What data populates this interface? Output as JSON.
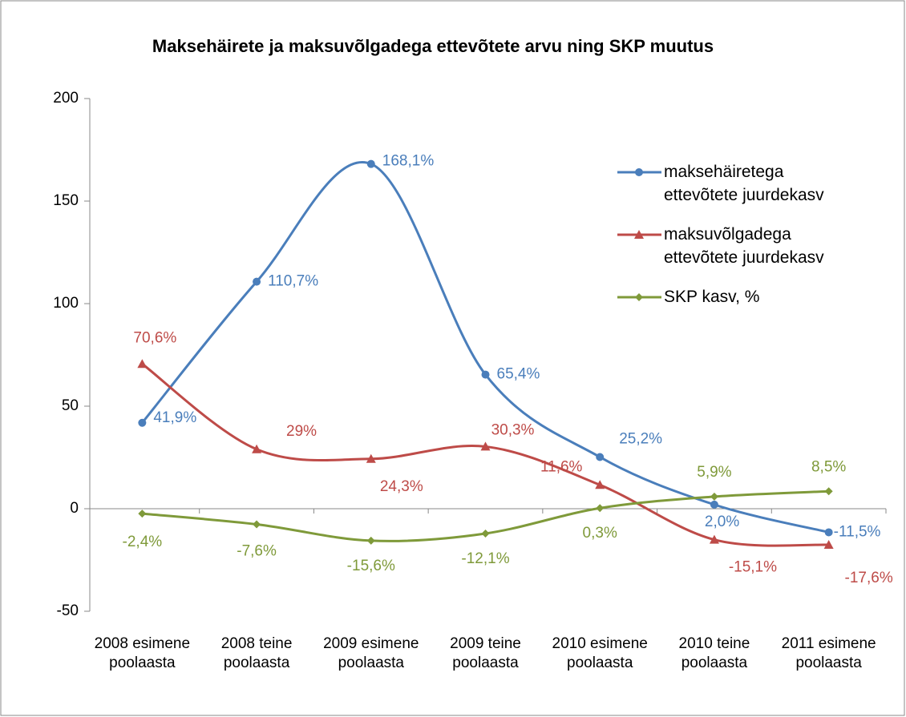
{
  "chart_data": {
    "type": "line",
    "title": "Maksehäirete ja maksuvõlgadega ettevõtete arvu ning SKP muutus",
    "categories": [
      "2008 esimene poolaasta",
      "2008 teine poolaasta",
      "2009 esimene poolaasta",
      "2009 teine poolaasta",
      "2010 esimene poolaasta",
      "2010 teine poolaasta",
      "2011 esimene poolaasta"
    ],
    "series": [
      {
        "name": "maksehäiretega ettevõtete juurdekasv",
        "color": "#4a7ebb",
        "marker": "circle",
        "values": [
          41.9,
          110.7,
          168.1,
          65.4,
          25.2,
          2.0,
          -11.5
        ],
        "value_labels": [
          "41,9%",
          "110,7%",
          "168,1%",
          "65,4%",
          "25,2%",
          "2,0%",
          "-11,5%"
        ]
      },
      {
        "name": "maksuvõlgadega ettevõtete juurdekasv",
        "color": "#be4b48",
        "marker": "triangle",
        "values": [
          70.6,
          29,
          24.3,
          30.3,
          11.6,
          -15.1,
          -17.6
        ],
        "value_labels": [
          "70,6%",
          "29%",
          "24,3%",
          "30,3%",
          "11,6%",
          "-15,1%",
          "-17,6%"
        ]
      },
      {
        "name": "SKP kasv, %",
        "color": "#7f9a3a",
        "marker": "diamond",
        "values": [
          -2.4,
          -7.6,
          -15.6,
          -12.1,
          0.3,
          5.9,
          8.5
        ],
        "value_labels": [
          "-2,4%",
          "-7,6%",
          "-15,6%",
          "-12,1%",
          "0,3%",
          "5,9%",
          "8,5%"
        ]
      }
    ],
    "ylim": [
      -50,
      200
    ],
    "yticks": [
      -50,
      0,
      50,
      100,
      150,
      200
    ],
    "legend": "right"
  }
}
